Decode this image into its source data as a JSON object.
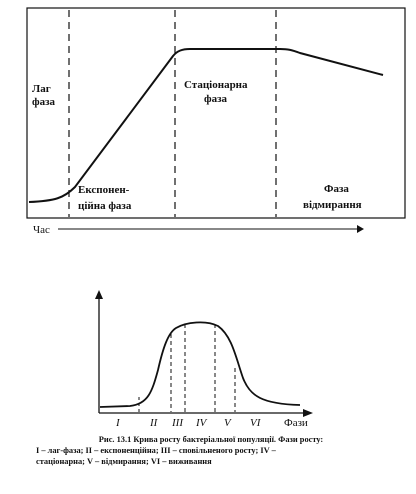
{
  "diagram1": {
    "phase_labels": [
      [
        "Лаг",
        "фаза"
      ],
      [
        "Експонен-",
        "ційна фаза"
      ],
      [
        "Стаціонарна",
        "фаза"
      ],
      [
        "Фаза",
        "відмирання"
      ]
    ],
    "time_axis_label": "Час"
  },
  "diagram2": {
    "phase_numerals": [
      "I",
      "II",
      "III",
      "IV",
      "V",
      "VI"
    ],
    "x_axis_label": "Фази"
  },
  "caption": {
    "line1": "Рис. 13.1 Крива росту бактеріальної популяції. Фази росту:",
    "line2": "I – лаг-фаза; II – експоненційна; III – сповільненого росту; IV –",
    "line3": "стаціонарна; V – відмирання; VI – виживання"
  }
}
